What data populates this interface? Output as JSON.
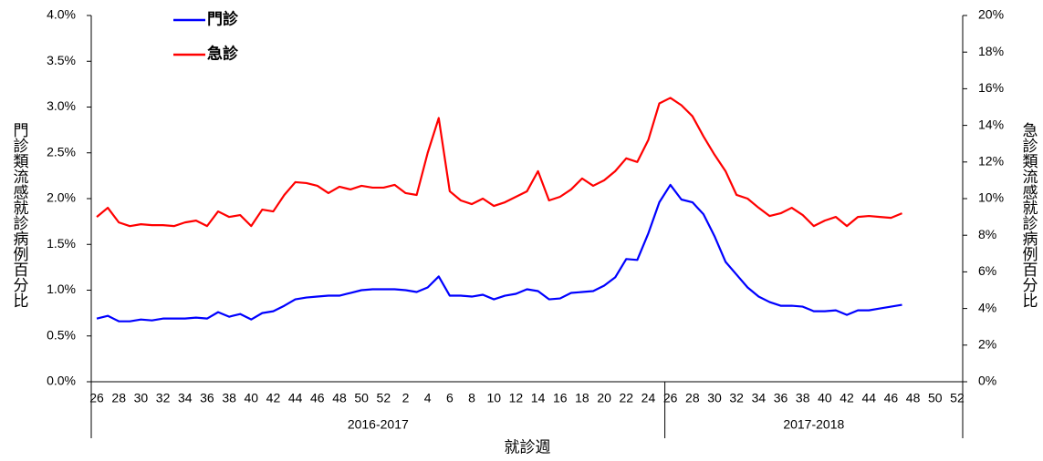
{
  "chart_data": {
    "type": "line",
    "x_label": "就診週",
    "y_label": "門診類流感就診病例百分比",
    "y2_label": "急診類流感就診病例百分比",
    "categories": [
      "26",
      null,
      "28",
      null,
      "30",
      null,
      "32",
      null,
      "34",
      null,
      "36",
      null,
      "38",
      null,
      "40",
      null,
      "42",
      null,
      "44",
      null,
      "46",
      null,
      "48",
      null,
      "50",
      null,
      "52",
      null,
      "2",
      null,
      "4",
      null,
      "6",
      null,
      "8",
      null,
      "10",
      null,
      "12",
      null,
      "14",
      null,
      "16",
      null,
      "18",
      null,
      "20",
      null,
      "22",
      null,
      "24",
      null,
      "26",
      null,
      "28",
      null,
      "30",
      null,
      "32",
      null,
      "34",
      null,
      "36",
      null,
      "38",
      null,
      "40",
      null,
      "42",
      null,
      "44",
      null,
      "46",
      null,
      "48",
      null,
      "50",
      null,
      "52"
    ],
    "category_groups": [
      "2016-2017",
      "2016-2017",
      "2016-2017",
      "2016-2017",
      "2016-2017",
      "2016-2017",
      "2016-2017",
      "2016-2017",
      "2016-2017",
      "2016-2017",
      "2016-2017",
      "2016-2017",
      "2016-2017",
      "2016-2017",
      "2016-2017",
      "2016-2017",
      "2016-2017",
      "2016-2017",
      "2016-2017",
      "2016-2017",
      "2016-2017",
      "2016-2017",
      "2016-2017",
      "2016-2017",
      "2016-2017",
      "2016-2017",
      "2016-2017",
      "2016-2017",
      "2016-2017",
      "2016-2017",
      "2016-2017",
      "2016-2017",
      "2016-2017",
      "2016-2017",
      "2016-2017",
      "2016-2017",
      "2016-2017",
      "2016-2017",
      "2016-2017",
      "2016-2017",
      "2016-2017",
      "2016-2017",
      "2016-2017",
      "2016-2017",
      "2016-2017",
      "2016-2017",
      "2016-2017",
      "2016-2017",
      "2016-2017",
      "2016-2017",
      "2016-2017",
      "2016-2017",
      "2017-2018",
      "2017-2018",
      "2017-2018",
      "2017-2018",
      "2017-2018",
      "2017-2018",
      "2017-2018",
      "2017-2018",
      "2017-2018",
      "2017-2018",
      "2017-2018",
      "2017-2018",
      "2017-2018",
      "2017-2018",
      "2017-2018",
      "2017-2018",
      "2017-2018",
      "2017-2018",
      "2017-2018",
      "2017-2018",
      "2017-2018",
      "2017-2018",
      "2017-2018",
      "2017-2018",
      "2017-2018",
      "2017-2018",
      "2017-2018"
    ],
    "series": [
      {
        "name": "門診",
        "color": "#0000ff",
        "axis": "y",
        "values": [
          0.69,
          0.72,
          0.66,
          0.66,
          0.68,
          0.67,
          0.69,
          0.69,
          0.69,
          0.7,
          0.69,
          0.76,
          0.71,
          0.74,
          0.68,
          0.75,
          0.77,
          0.83,
          0.9,
          0.92,
          0.93,
          0.94,
          0.94,
          0.97,
          1.0,
          1.01,
          1.01,
          1.01,
          1.0,
          0.98,
          1.03,
          1.15,
          0.94,
          0.94,
          0.93,
          0.95,
          0.9,
          0.94,
          0.96,
          1.01,
          0.99,
          0.9,
          0.91,
          0.97,
          0.98,
          0.99,
          1.05,
          1.14,
          1.34,
          1.33,
          1.62,
          1.96,
          2.15,
          1.99,
          1.96,
          1.83,
          1.59,
          1.31,
          1.17,
          1.03,
          0.93,
          0.87,
          0.83,
          0.83,
          0.82,
          0.77,
          0.77,
          0.78,
          0.73,
          0.78,
          0.78,
          0.8,
          0.82,
          0.84,
          null,
          null,
          null,
          null,
          null
        ]
      },
      {
        "name": "急診",
        "color": "#ff0000",
        "axis": "y2",
        "values": [
          9.0,
          9.5,
          8.7,
          8.5,
          8.6,
          8.55,
          8.55,
          8.5,
          8.7,
          8.8,
          8.5,
          9.3,
          9.0,
          9.1,
          8.5,
          9.4,
          9.3,
          10.2,
          10.9,
          10.85,
          10.7,
          10.3,
          10.65,
          10.5,
          10.7,
          10.6,
          10.6,
          10.75,
          10.3,
          10.2,
          12.5,
          14.4,
          10.4,
          9.9,
          9.7,
          10.0,
          9.6,
          9.8,
          10.1,
          10.4,
          11.5,
          9.9,
          10.1,
          10.5,
          11.1,
          10.7,
          11.0,
          11.5,
          12.2,
          12.0,
          13.2,
          15.2,
          15.5,
          15.1,
          14.5,
          13.4,
          12.4,
          11.5,
          10.2,
          10.0,
          9.5,
          9.05,
          9.2,
          9.5,
          9.1,
          8.5,
          8.8,
          9.0,
          8.5,
          9.0,
          9.05,
          9.0,
          8.95,
          9.2,
          null,
          null,
          null,
          null,
          null
        ]
      }
    ],
    "ylim": [
      0,
      4
    ],
    "yticks": [
      {
        "value": 0,
        "label": "0.0%"
      },
      {
        "value": 0.5,
        "label": "0.5%"
      },
      {
        "value": 1,
        "label": "1.0%"
      },
      {
        "value": 1.5,
        "label": "1.5%"
      },
      {
        "value": 2,
        "label": "2.0%"
      },
      {
        "value": 2.5,
        "label": "2.5%"
      },
      {
        "value": 3,
        "label": "3.0%"
      },
      {
        "value": 3.5,
        "label": "3.5%"
      },
      {
        "value": 4,
        "label": "4.0%"
      }
    ],
    "y2lim": [
      0,
      20
    ],
    "y2ticks": [
      {
        "value": 0,
        "label": "0%"
      },
      {
        "value": 2,
        "label": "2%"
      },
      {
        "value": 4,
        "label": "4%"
      },
      {
        "value": 6,
        "label": "6%"
      },
      {
        "value": 8,
        "label": "8%"
      },
      {
        "value": 10,
        "label": "10%"
      },
      {
        "value": 12,
        "label": "12%"
      },
      {
        "value": 14,
        "label": "14%"
      },
      {
        "value": 16,
        "label": "16%"
      },
      {
        "value": 18,
        "label": "18%"
      },
      {
        "value": 20,
        "label": "20%"
      }
    ],
    "grid": false,
    "legend": "top-left"
  }
}
